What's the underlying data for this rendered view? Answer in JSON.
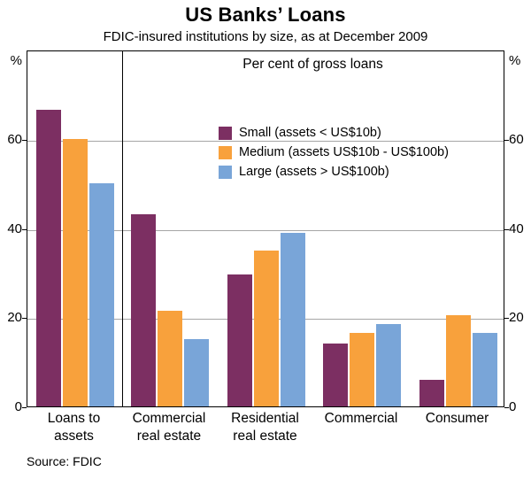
{
  "header": {
    "title": "US Banks’ Loans",
    "subtitle": "FDIC-insured institutions by size, as at December 2009"
  },
  "axis": {
    "unit": "%"
  },
  "chart_data": {
    "type": "bar",
    "title": "US Banks’ Loans",
    "subtitle": "FDIC-insured institutions by size, as at December 2009",
    "annotation": "Per cent of gross loans",
    "categories": [
      "Loans to assets",
      "Commercial real estate",
      "Residential real estate",
      "Commercial",
      "Consumer"
    ],
    "tick_labels": [
      [
        "Loans to",
        "assets"
      ],
      [
        "Commercial",
        "real estate"
      ],
      [
        "Residential",
        "real estate"
      ],
      [
        "Commercial"
      ],
      [
        "Consumer"
      ]
    ],
    "series": [
      {
        "name": "Small (assets < US$10b)",
        "color": "#7C2F62",
        "values": [
          66.5,
          43,
          29.5,
          14,
          6
        ]
      },
      {
        "name": "Medium (assets US$10b - US$100b)",
        "color": "#F8A13C",
        "values": [
          60,
          21.5,
          35,
          16.5,
          20.5
        ]
      },
      {
        "name": "Large (assets > US$100b)",
        "color": "#79A5D8",
        "values": [
          50,
          15,
          39,
          18.5,
          16.5
        ]
      }
    ],
    "ylabel": "%",
    "ylim": [
      0,
      80
    ],
    "yticks": [
      0,
      20,
      40,
      60
    ],
    "grid": true,
    "legend_position": "upper-middle",
    "panel_divider_after_category": 0
  },
  "source": "Source: FDIC"
}
